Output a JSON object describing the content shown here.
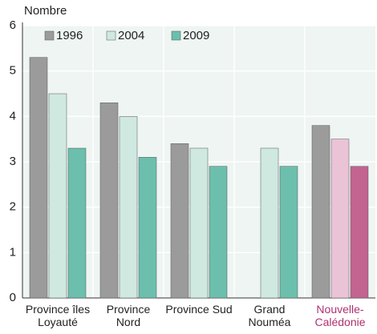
{
  "chart_data": {
    "type": "bar",
    "y_label": "Nombre",
    "categories": [
      "Province îles Loyauté",
      "Province Nord",
      "Province Sud",
      "Grand Nouméa",
      "Nouvelle-Calédonie"
    ],
    "series": [
      {
        "name": "1996",
        "color": "#9b9b9b",
        "highlight_color": "#9b9b9b",
        "values": [
          5.3,
          4.3,
          3.4,
          null,
          3.8
        ]
      },
      {
        "name": "2004",
        "color": "#cfe9e1",
        "highlight_color": "#ebc3d6",
        "values": [
          4.5,
          4.0,
          3.3,
          3.3,
          3.5
        ]
      },
      {
        "name": "2009",
        "color": "#6cbfad",
        "highlight_color": "#c2648f",
        "values": [
          3.3,
          3.1,
          2.9,
          2.9,
          2.9
        ]
      }
    ],
    "highlight_category": 4,
    "highlight_label_color": "#b0316f",
    "ylim": [
      0,
      6
    ],
    "yticks": [
      0,
      1,
      2,
      3,
      4,
      5,
      6
    ],
    "grid": true
  }
}
